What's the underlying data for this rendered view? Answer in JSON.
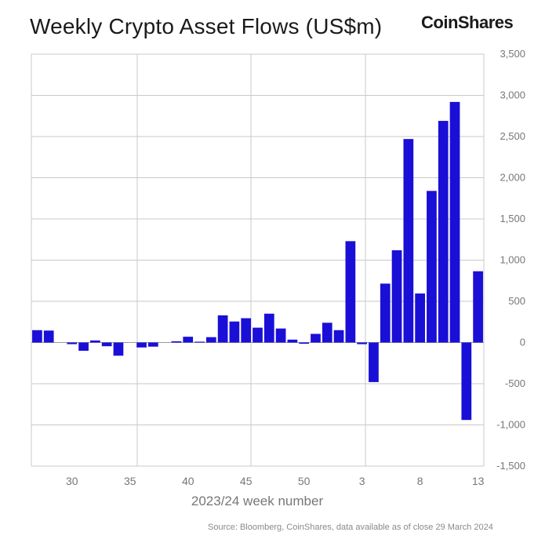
{
  "title": "Weekly Crypto Asset Flows (US$m)",
  "brand": "CoinShares",
  "source": "Source: Bloomberg, CoinShares, data available as of close 29 March 2024",
  "colors": {
    "bar": "#1a0fd6",
    "grid": "#c8c8c8",
    "axis_text": "#777777"
  },
  "chart_data": {
    "type": "bar",
    "xlabel": "2023/24 week number",
    "ylabel": "",
    "ylim": [
      -1500,
      3500
    ],
    "yticks": [
      -1500,
      -1000,
      -500,
      0,
      500,
      1000,
      1500,
      2000,
      2500,
      3000,
      3500
    ],
    "ytick_labels": [
      "-1,500",
      "-1,000",
      "-500",
      "0",
      "500",
      "1,000",
      "1,500",
      "2,000",
      "2,500",
      "3,000",
      "3,500"
    ],
    "xtick_labels": [
      {
        "label": "30",
        "week": "30"
      },
      {
        "label": "35",
        "week": "35"
      },
      {
        "label": "40",
        "week": "40"
      },
      {
        "label": "45",
        "week": "45"
      },
      {
        "label": "50",
        "week": "50"
      },
      {
        "label": "3",
        "week": "3"
      },
      {
        "label": "8",
        "week": "8"
      },
      {
        "label": "13",
        "week": "13"
      }
    ],
    "grid": true,
    "categories": [
      "27",
      "28",
      "29",
      "30",
      "31",
      "32",
      "33",
      "34",
      "35",
      "36",
      "37",
      "38",
      "39",
      "40",
      "41",
      "42",
      "43",
      "44",
      "45",
      "46",
      "47",
      "48",
      "49",
      "50",
      "51",
      "52",
      "1",
      "2",
      "3",
      "4",
      "5",
      "6",
      "7",
      "8",
      "9",
      "10",
      "11",
      "12",
      "13"
    ],
    "values": [
      150,
      145,
      0,
      -20,
      -100,
      25,
      -45,
      -160,
      0,
      -60,
      -50,
      0,
      15,
      70,
      10,
      65,
      330,
      255,
      295,
      180,
      350,
      170,
      35,
      -15,
      105,
      240,
      150,
      1230,
      -20,
      -480,
      715,
      1120,
      2470,
      595,
      1840,
      2690,
      2920,
      -940,
      865
    ]
  }
}
